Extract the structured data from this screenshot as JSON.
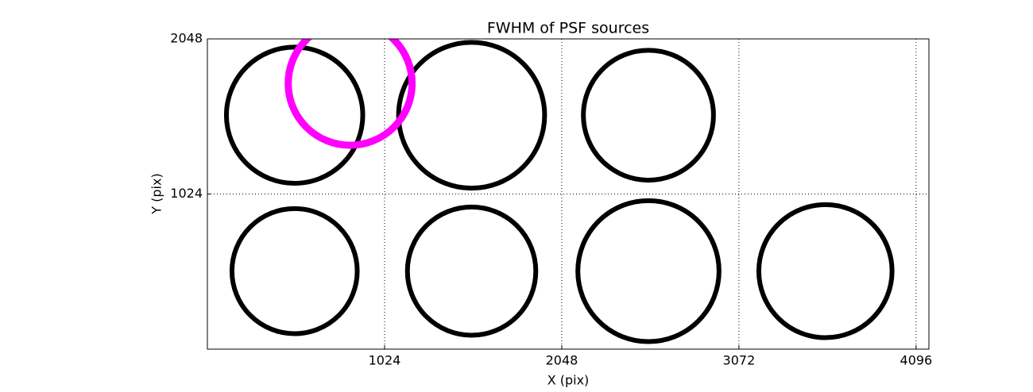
{
  "chart_data": {
    "type": "circles",
    "title": "FWHM of PSF sources",
    "x_label": "X (pix)",
    "y_label": "Y (pix)",
    "xlim": [
      0,
      4170
    ],
    "ylim": [
      0,
      2048
    ],
    "xticks": [
      1024,
      2048,
      3072,
      4096
    ],
    "yticks": [
      1024,
      2048
    ],
    "grid": true,
    "series": [
      {
        "color": "#000000",
        "x": [
          504,
          1527,
          2549,
          504,
          1527,
          2549,
          3572
        ],
        "y": [
          1544,
          1544,
          1544,
          515,
          515,
          515,
          515
        ],
        "sizes": [
          394,
          422,
          376,
          362,
          371,
          408,
          385
        ]
      },
      {
        "color": "#ff00ff",
        "x": [
          825
        ],
        "y": [
          1754
        ],
        "sizes": [
          358
        ]
      }
    ]
  }
}
